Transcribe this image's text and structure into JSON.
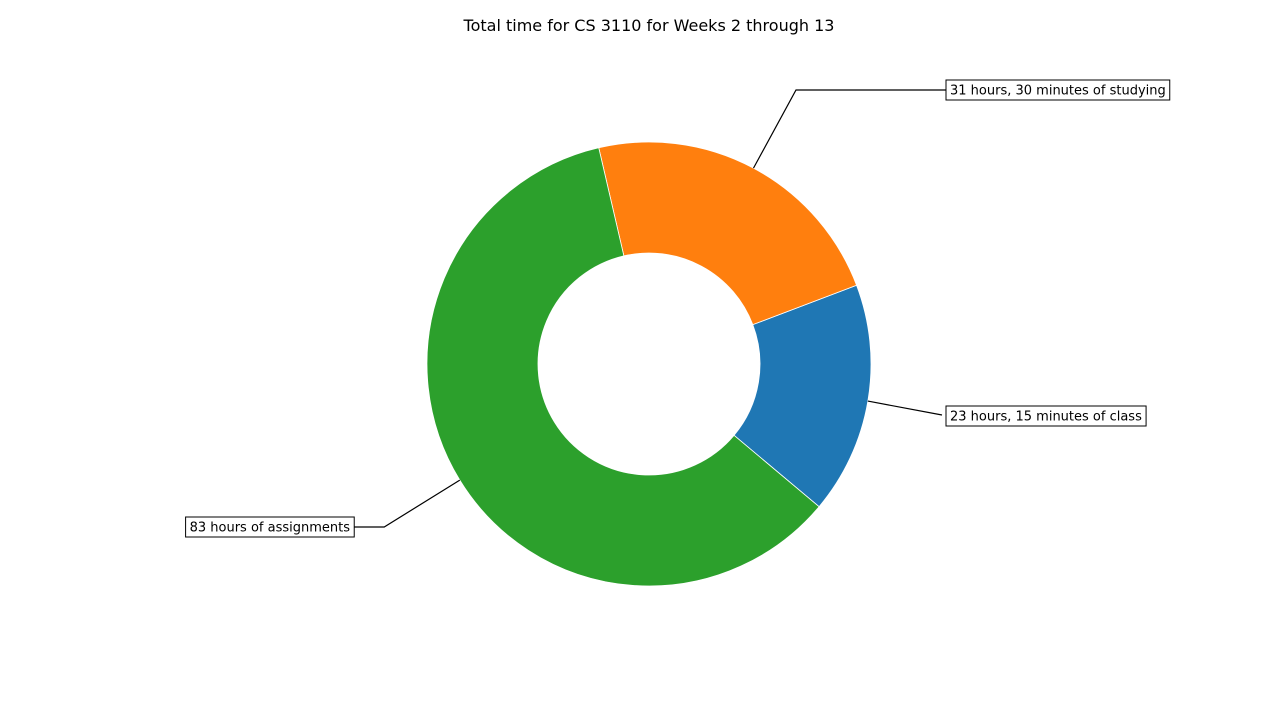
{
  "chart_data": {
    "type": "pie",
    "style": "donut",
    "title": "Total time for CS 3110 for Weeks 2 through 13",
    "start_angle_deg": -40,
    "direction": "counterclockwise",
    "slices": [
      {
        "label": "23 hours, 15 minutes of class",
        "value": 23.25,
        "color": "#1f77b4"
      },
      {
        "label": "31 hours, 30 minutes of studying",
        "value": 31.5,
        "color": "#ff7f0e"
      },
      {
        "label": "83 hours of assignments",
        "value": 83,
        "color": "#2ca02c"
      }
    ]
  }
}
